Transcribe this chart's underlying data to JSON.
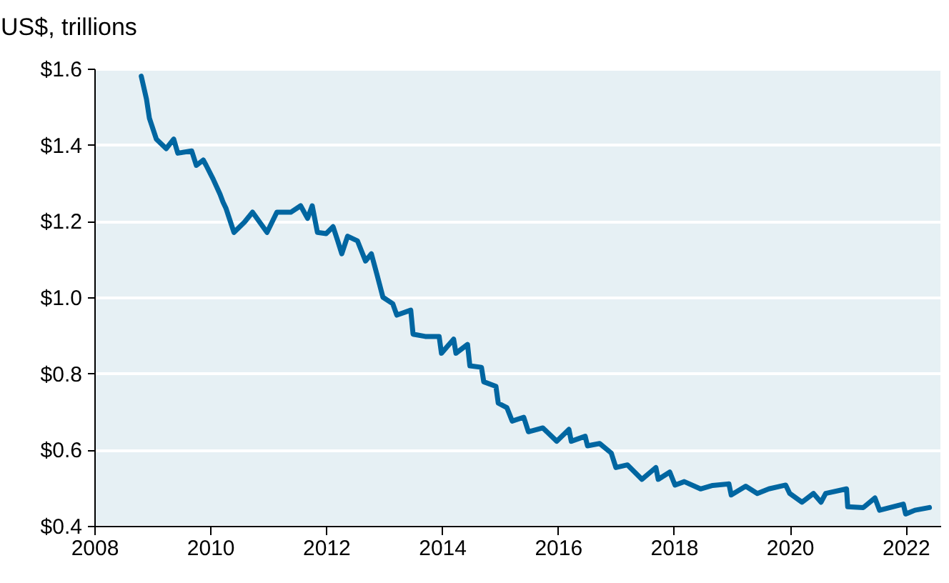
{
  "chart_data": {
    "type": "line",
    "ylabel": "US$, trillions",
    "xlim": [
      2008,
      2022.6
    ],
    "xticks": [
      2008,
      2010,
      2012,
      2014,
      2016,
      2018,
      2020,
      2022
    ],
    "ylim": [
      0.4,
      1.6
    ],
    "yticks": [
      {
        "value": 0.4,
        "label": "$0.4"
      },
      {
        "value": 0.6,
        "label": "$0.6"
      },
      {
        "value": 0.8,
        "label": "$0.8"
      },
      {
        "value": 1.0,
        "label": "$1.0"
      },
      {
        "value": 1.2,
        "label": "$1.2"
      },
      {
        "value": 1.4,
        "label": "$1.4"
      },
      {
        "value": 1.6,
        "label": "$1.6"
      }
    ],
    "grid": "y",
    "marker": "none",
    "line_style": "solid",
    "x": [
      2008.81,
      2008.9,
      2008.95,
      2009.07,
      2009.24,
      2009.37,
      2009.44,
      2009.68,
      2009.76,
      2009.88,
      2009.93,
      2010.05,
      2010.17,
      2010.22,
      2010.27,
      2010.41,
      2010.59,
      2010.73,
      2010.98,
      2011.15,
      2011.39,
      2011.56,
      2011.68,
      2011.76,
      2011.85,
      2012.0,
      2012.12,
      2012.2,
      2012.27,
      2012.37,
      2012.54,
      2012.68,
      2012.78,
      2012.88,
      2012.98,
      2013.15,
      2013.22,
      2013.46,
      2013.5,
      2013.71,
      2013.95,
      2013.99,
      2014.2,
      2014.24,
      2014.44,
      2014.48,
      2014.68,
      2014.72,
      2014.93,
      2014.97,
      2015.12,
      2015.21,
      2015.41,
      2015.49,
      2015.74,
      2015.98,
      2016.19,
      2016.23,
      2016.47,
      2016.51,
      2016.72,
      2016.92,
      2017.0,
      2017.2,
      2017.45,
      2017.69,
      2017.73,
      2017.93,
      2018.02,
      2018.18,
      2018.46,
      2018.67,
      2018.95,
      2018.99,
      2019.24,
      2019.44,
      2019.64,
      2019.93,
      2020.0,
      2020.21,
      2020.41,
      2020.54,
      2020.62,
      2020.98,
      2021.0,
      2021.27,
      2021.47,
      2021.55,
      2021.96,
      2022.0,
      2022.16,
      2022.41
    ],
    "series": [
      {
        "color": "#0066a1",
        "values": [
          1.58,
          1.52,
          1.47,
          1.415,
          1.39,
          1.415,
          1.378,
          1.384,
          1.346,
          1.36,
          1.346,
          1.31,
          1.27,
          1.25,
          1.234,
          1.17,
          1.197,
          1.223,
          1.17,
          1.223,
          1.223,
          1.24,
          1.207,
          1.24,
          1.17,
          1.167,
          1.185,
          1.148,
          1.114,
          1.16,
          1.148,
          1.095,
          1.114,
          1.058,
          1.0,
          0.983,
          0.953,
          0.966,
          0.903,
          0.897,
          0.897,
          0.853,
          0.89,
          0.853,
          0.876,
          0.82,
          0.816,
          0.778,
          0.766,
          0.722,
          0.71,
          0.675,
          0.685,
          0.647,
          0.657,
          0.622,
          0.653,
          0.622,
          0.635,
          0.61,
          0.616,
          0.591,
          0.553,
          0.56,
          0.522,
          0.553,
          0.522,
          0.541,
          0.507,
          0.516,
          0.497,
          0.506,
          0.51,
          0.481,
          0.504,
          0.485,
          0.497,
          0.507,
          0.485,
          0.462,
          0.485,
          0.462,
          0.485,
          0.497,
          0.45,
          0.448,
          0.473,
          0.441,
          0.457,
          0.431,
          0.441,
          0.448
        ]
      }
    ]
  }
}
